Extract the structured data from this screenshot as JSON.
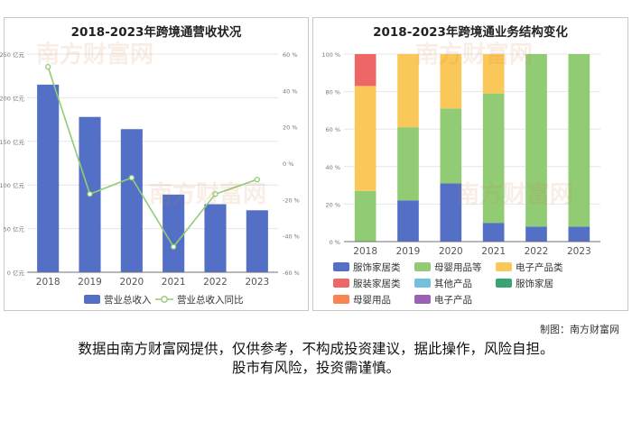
{
  "credit": "制图：南方财富网",
  "disclaimer": [
    "数据由南方财富网提供，仅供参考，不构成投资建议，据此操作，风险自担。",
    "股市有风险，投资需谨慎。"
  ],
  "watermark": "南方财富网",
  "colors": {
    "bar": "#5470c6",
    "line": "#91cc75"
  },
  "chart_data": [
    {
      "type": "bar",
      "title": "2018-2023年跨境通营收状况",
      "categories": [
        "2018",
        "2019",
        "2020",
        "2021",
        "2022",
        "2023"
      ],
      "series": [
        {
          "name": "营业总收入",
          "type": "bar",
          "axis": "left",
          "values": [
            215,
            178,
            164,
            89,
            78,
            71
          ]
        },
        {
          "name": "营业总收入同比",
          "type": "line",
          "axis": "right",
          "values": [
            53,
            -17,
            -8,
            -46,
            -17,
            -9
          ]
        }
      ],
      "ylim_left": [
        0,
        250
      ],
      "ylim_right": [
        -60,
        60
      ],
      "yticks_left": [
        "0 亿元",
        "50 亿元",
        "100 亿元",
        "150 亿元",
        "200 亿元",
        "250 亿元"
      ],
      "yticks_right": [
        "-60 %",
        "-40 %",
        "-20 %",
        "0 %",
        "20 %",
        "40 %",
        "60 %"
      ],
      "legend": "bottom"
    },
    {
      "type": "bar",
      "stacked": true,
      "title": "2018-2023年跨境通业务结构变化",
      "categories": [
        "2018",
        "2019",
        "2020",
        "2021",
        "2022",
        "2023"
      ],
      "series": [
        {
          "name": "服饰家居类",
          "color": "#5470c6",
          "values": [
            0,
            22,
            31,
            10,
            8,
            8
          ]
        },
        {
          "name": "母婴用品等",
          "color": "#91cc75",
          "values": [
            27,
            39,
            40,
            69,
            92,
            92
          ]
        },
        {
          "name": "电子产品类",
          "color": "#fac858",
          "values": [
            56,
            39,
            29,
            21,
            0,
            0
          ]
        },
        {
          "name": "服装家居类",
          "color": "#ee6666",
          "values": [
            17,
            0,
            0,
            0,
            0,
            0
          ]
        },
        {
          "name": "其他产品",
          "color": "#73c0de",
          "values": [
            0,
            0,
            0,
            0,
            0,
            0
          ]
        },
        {
          "name": "服饰家居",
          "color": "#3ba272",
          "values": [
            0,
            0,
            0,
            0,
            0,
            0
          ]
        },
        {
          "name": "母婴用品",
          "color": "#fc8452",
          "values": [
            0,
            0,
            0,
            0,
            0,
            0
          ]
        },
        {
          "name": "电子产品",
          "color": "#9a60b4",
          "values": [
            0,
            0,
            0,
            0,
            0,
            0
          ]
        }
      ],
      "ylim": [
        0,
        100
      ],
      "yticks": [
        "0 %",
        "20 %",
        "40 %",
        "60 %",
        "80 %",
        "100 %"
      ],
      "legend": "bottom"
    }
  ]
}
